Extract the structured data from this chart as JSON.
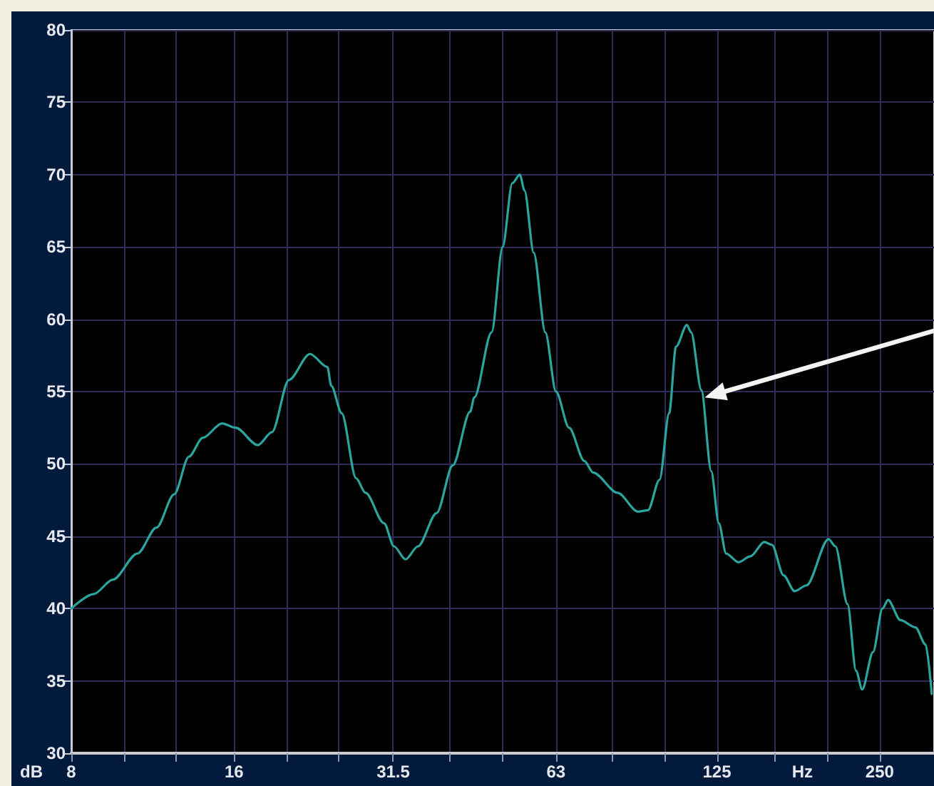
{
  "chart_data": {
    "type": "line",
    "xlabel": "Hz",
    "ylabel": "dB",
    "log": "x",
    "grid": true,
    "marker": "none",
    "line_style": "solid",
    "xlim": [
      8,
      315
    ],
    "ylim": [
      30,
      80
    ],
    "xticks": [
      8,
      {
        "value": 10,
        "label": null
      },
      {
        "value": 12.5,
        "label": null
      },
      16,
      {
        "value": 20,
        "label": null
      },
      {
        "value": 25,
        "label": null
      },
      31.5,
      {
        "value": 40,
        "label": null
      },
      {
        "value": 50,
        "label": null
      },
      63,
      {
        "value": 80,
        "label": null
      },
      {
        "value": 100,
        "label": null
      },
      125,
      {
        "value": 160,
        "label": null
      },
      {
        "value": 200,
        "label": null
      },
      250
    ],
    "yticks": [
      30,
      35,
      40,
      45,
      50,
      55,
      60,
      65,
      70,
      75,
      80
    ],
    "x": [
      8,
      8.8,
      9.55,
      10.6,
      11.5,
      12.4,
      13.2,
      14.0,
      15.2,
      16.1,
      17.7,
      18.8,
      20.2,
      22.1,
      23.8,
      24.2,
      25.3,
      26.9,
      28.0,
      30.3,
      31.6,
      33.2,
      35.0,
      37.9,
      40.6,
      43.7,
      44.5,
      47.9,
      50.2,
      52.3,
      54.0,
      55.1,
      57.3,
      60.2,
      63,
      66.6,
      71.1,
      73.8,
      81.9,
      89.3,
      93.2,
      97.9,
      102,
      105,
      110,
      112,
      117,
      122,
      126,
      130,
      137,
      144,
      153,
      158,
      166,
      174,
      183,
      201,
      207,
      218,
      226,
      232,
      243,
      253,
      259,
      273,
      291,
      304,
      312
    ],
    "series": [
      {
        "color": "#2ba59e",
        "values": [
          40.0,
          41.0,
          42.0,
          43.8,
          45.6,
          47.9,
          50.5,
          51.8,
          52.8,
          52.5,
          51.3,
          52.2,
          55.8,
          57.6,
          56.7,
          55.4,
          53.5,
          49.0,
          48.0,
          45.9,
          44.3,
          43.4,
          44.3,
          46.6,
          49.9,
          53.6,
          54.6,
          59.1,
          65.0,
          69.4,
          70.0,
          68.9,
          64.6,
          59.1,
          55.0,
          52.5,
          50.2,
          49.4,
          48.0,
          46.7,
          46.8,
          48.9,
          53.5,
          58.1,
          59.6,
          59.1,
          55.1,
          49.5,
          45.9,
          43.8,
          43.2,
          43.6,
          44.6,
          44.4,
          42.3,
          41.2,
          41.6,
          44.8,
          44.3,
          40.3,
          35.7,
          34.4,
          37.0,
          40.0,
          40.6,
          39.2,
          38.7,
          37.5,
          34.1
        ]
      }
    ]
  }
}
